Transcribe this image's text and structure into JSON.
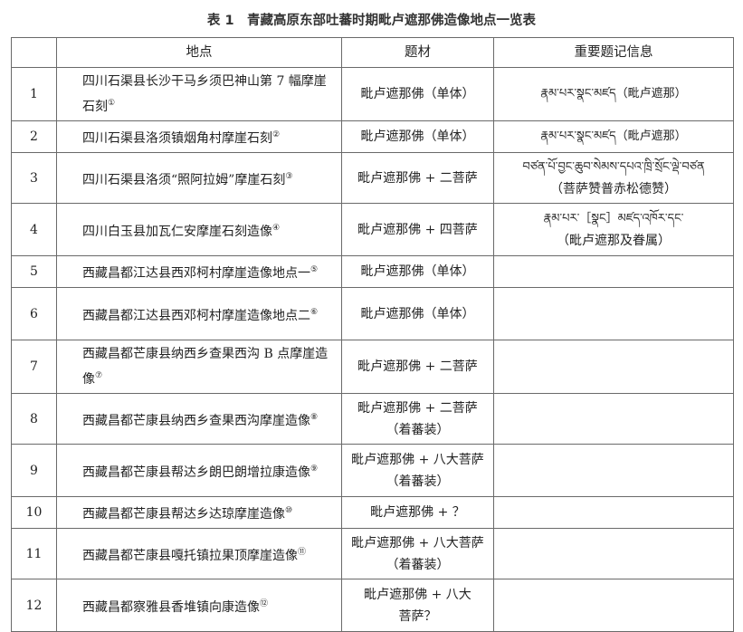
{
  "title": "表 1　青藏高原东部吐蕃时期毗卢遮那佛造像地点一览表",
  "headers": [
    "",
    "地点",
    "题材",
    "重要题记信息"
  ],
  "rows": [
    {
      "no": "1",
      "place": "四川石渠县长沙干马乡须巴神山第 7 幅摩崖石刻",
      "note": "①",
      "subject": "毗卢遮那佛（单体）",
      "subject2": "",
      "inscription": "རྣམ་པར་སྣང་མཛད（毗卢遮那）",
      "inscription2": ""
    },
    {
      "no": "2",
      "place": "四川石渠县洛须镇烟角村摩崖石刻",
      "note": "②",
      "subject": "毗卢遮那佛（单体）",
      "subject2": "",
      "inscription": "རྣམ་པར་སྣང་མཛད（毗卢遮那）",
      "inscription2": ""
    },
    {
      "no": "3",
      "place": "四川石渠县洛须“照阿拉姆”摩崖石刻",
      "note": "③",
      "subject": "毗卢遮那佛 + 二菩萨",
      "subject2": "",
      "inscription": "བཙན་པོ་བྱང་ཆུབ་སེམས་དཔའ་ཁྲི་སྲོང་ལྡེ་བཙན",
      "inscription2": "（菩萨赞普赤松德赞）"
    },
    {
      "no": "4",
      "place": "四川白玉县加瓦仁安摩崖石刻造像",
      "note": "④",
      "subject": "毗卢遮那佛 + 四菩萨",
      "subject2": "",
      "inscription": "རྣམ་པར་［སྣང］མཛད་འཁོར་དང་",
      "inscription2": "（毗卢遮那及眷属）"
    },
    {
      "no": "5",
      "place": "西藏昌都江达县西邓柯村摩崖造像地点一",
      "note": "⑤",
      "subject": "毗卢遮那佛（单体）",
      "subject2": "",
      "inscription": "",
      "inscription2": ""
    },
    {
      "no": "6",
      "place": "西藏昌都江达县西邓柯村摩崖造像地点二",
      "note": "⑥",
      "subject": "毗卢遮那佛（单体）",
      "subject2": "",
      "inscription": "",
      "inscription2": ""
    },
    {
      "no": "7",
      "place": "西藏昌都芒康县纳西乡查果西沟 B 点摩崖造像",
      "note": "⑦",
      "subject": "毗卢遮那佛 + 二菩萨",
      "subject2": "",
      "inscription": "",
      "inscription2": ""
    },
    {
      "no": "8",
      "place": "西藏昌都芒康县纳西乡查果西沟摩崖造像",
      "note": "⑧",
      "subject": "毗卢遮那佛 + 二菩萨",
      "subject2": "（着蕃装）",
      "inscription": "",
      "inscription2": ""
    },
    {
      "no": "9",
      "place": "西藏昌都芒康县帮达乡朗巴朗增拉康造像",
      "note": "⑨",
      "subject": "毗卢遮那佛 + 八大菩萨",
      "subject2": "（着蕃装）",
      "inscription": "",
      "inscription2": ""
    },
    {
      "no": "10",
      "place": "西藏昌都芒康县帮达乡达琼摩崖造像",
      "note": "⑩",
      "subject": "毗卢遮那佛 + ？",
      "subject2": "",
      "inscription": "",
      "inscription2": ""
    },
    {
      "no": "11",
      "place": "西藏昌都芒康县嘎托镇拉果顶摩崖造像",
      "note": "⑪",
      "subject": "毗卢遮那佛 + 八大菩萨",
      "subject2": "（着蕃装）",
      "inscription": "",
      "inscription2": ""
    },
    {
      "no": "12",
      "place": "西藏昌都察雅县香堆镇向康造像",
      "note": "⑫",
      "subject": "毗卢遮那佛 + 八大",
      "subject2": "菩萨？",
      "inscription": "",
      "inscription2": ""
    }
  ]
}
